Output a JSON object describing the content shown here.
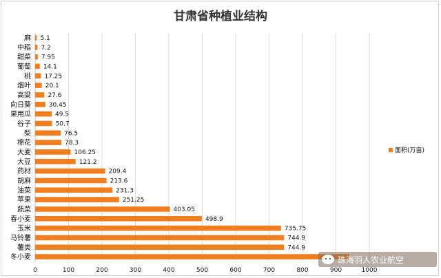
{
  "chart_data": {
    "type": "bar",
    "orientation": "horizontal",
    "title": "甘肃省种植业结构",
    "categories": [
      "麻",
      "中稻",
      "甜菜",
      "葡萄",
      "桃",
      "烟叶",
      "高粱",
      "向日葵",
      "果用瓜",
      "谷子",
      "梨",
      "棉花",
      "大麦",
      "大豆",
      "药材",
      "胡麻",
      "油菜",
      "苹果",
      "蔬菜",
      "春小麦",
      "玉米",
      "马铃薯",
      "薯类",
      "冬小麦"
    ],
    "series": [
      {
        "name": "面积(万亩)",
        "color": "#f07d1e",
        "values": [
          5.1,
          7.2,
          7.95,
          14.1,
          17.25,
          20.1,
          27.6,
          30.45,
          49.5,
          50.7,
          76.5,
          78.3,
          106.25,
          121.2,
          209.4,
          213.6,
          231.3,
          251.25,
          403.05,
          498.9,
          735.75,
          744.9,
          744.9,
          940
        ]
      }
    ],
    "data_labels": [
      "5.1",
      "7.2",
      "7.95",
      "14.1",
      "17.25",
      "20.1",
      "27.6",
      "30.45",
      "49.5",
      "50.7",
      "76.5",
      "78.3",
      "106.25",
      "121.2",
      "209.4",
      "213.6",
      "231.3",
      "251.25",
      "403.05",
      "498.9",
      "735.75",
      "744.9",
      "744.9",
      ""
    ],
    "xlim": [
      0,
      1000
    ],
    "x_ticks": [
      0,
      100,
      200,
      300,
      400,
      500,
      600,
      700,
      800,
      900,
      1000
    ],
    "grid": true,
    "legend_position": "right"
  },
  "watermark": {
    "text": "珠海羽人农业航空",
    "icon": "wechat-bubble-icon"
  }
}
